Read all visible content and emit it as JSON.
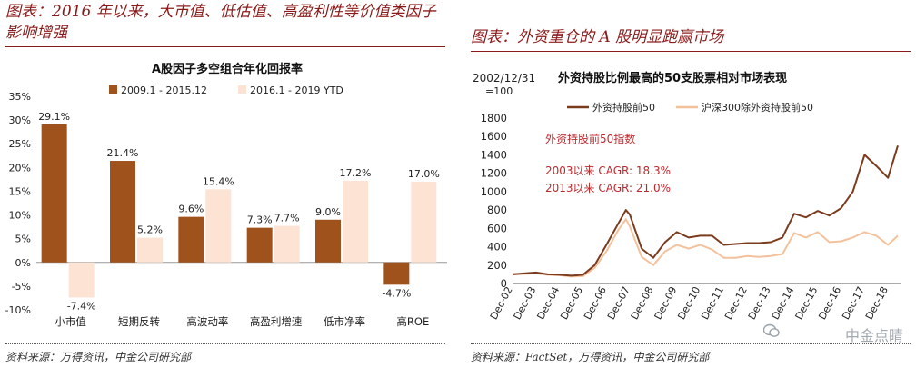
{
  "left_panel": {
    "title": "图表：2016 年以来，大市值、低估值、高盈利性等价值类因子影响增强",
    "source": "资料来源：万得资讯，中金公司研究部"
  },
  "right_panel": {
    "title": "图表：外资重仓的 A 股明显跑赢市场",
    "source": "资料来源：FactSet，万得资讯，中金公司研究部"
  },
  "watermark": {
    "text": "中金点睛",
    "icon": "wechat-icon"
  },
  "colors": {
    "brand": "#8b1a1a",
    "brown": "#a0521d",
    "peach": "#fde3d3",
    "line_light": "#f3c29c"
  },
  "chart_data": [
    {
      "type": "bar",
      "title": "A股因子多空组合年化回报率",
      "categories": [
        "小市值",
        "短期反转",
        "高波动率",
        "高盈利增速",
        "低市净率",
        "高ROE"
      ],
      "series": [
        {
          "name": "2009.1 - 2015.12",
          "values": [
            29.1,
            21.4,
            9.6,
            7.3,
            9.0,
            -4.7
          ]
        },
        {
          "name": "2016.1 - 2019 YTD",
          "values": [
            -7.4,
            5.2,
            15.4,
            7.7,
            17.2,
            17.0
          ]
        }
      ],
      "data_labels": [
        [
          "29.1%",
          "21.4%",
          "9.6%",
          "7.3%",
          "9.0%",
          "-4.7%"
        ],
        [
          "-7.4%",
          "5.2%",
          "15.4%",
          "7.7%",
          "17.2%",
          "17.0%"
        ]
      ],
      "ylim": [
        -10,
        35
      ],
      "yticks": [
        "-10%",
        "-5%",
        "0%",
        "5%",
        "10%",
        "15%",
        "20%",
        "25%",
        "30%",
        "35%"
      ],
      "legend": "top"
    },
    {
      "type": "line",
      "title": "外资持股比例最高的50支股票相对市场表现",
      "base_note": "2002/12/31\n=100",
      "x_ticks": [
        "Dec-02",
        "Dec-03",
        "Dec-04",
        "Dec-05",
        "Dec-06",
        "Dec-07",
        "Dec-08",
        "Dec-09",
        "Dec-10",
        "Dec-11",
        "Dec-12",
        "Dec-13",
        "Dec-14",
        "Dec-15",
        "Dec-16",
        "Dec-17",
        "Dec-18"
      ],
      "yticks": [
        "0",
        "200",
        "400",
        "600",
        "800",
        "1000",
        "1200",
        "1400",
        "1600",
        "1800"
      ],
      "ylim": [
        0,
        1800
      ],
      "annotations": [
        "外资持股前50指数",
        "2003以来 CAGR: 18.3%",
        "2013以来 CAGR: 21.0%"
      ],
      "x": [
        "Dec-02",
        "Jun-03",
        "Dec-03",
        "Jun-04",
        "Dec-04",
        "Jun-05",
        "Dec-05",
        "Jun-06",
        "Dec-06",
        "Jun-07",
        "Oct-07",
        "Dec-07",
        "Jun-08",
        "Dec-08",
        "Jun-09",
        "Dec-09",
        "Jun-10",
        "Dec-10",
        "Jun-11",
        "Dec-11",
        "Jun-12",
        "Dec-12",
        "Jun-13",
        "Dec-13",
        "Jun-14",
        "Dec-14",
        "Jun-15",
        "Dec-15",
        "Jun-16",
        "Dec-16",
        "Jun-17",
        "Dec-17",
        "Jun-18",
        "Dec-18",
        "May-19"
      ],
      "series": [
        {
          "name": "外资持股前50",
          "color": "#7a3b1e",
          "values": [
            100,
            110,
            120,
            100,
            95,
            85,
            95,
            200,
            420,
            650,
            800,
            750,
            380,
            280,
            450,
            560,
            500,
            520,
            520,
            420,
            430,
            440,
            440,
            450,
            500,
            760,
            720,
            790,
            740,
            820,
            1000,
            1400,
            1280,
            1150,
            1500
          ]
        },
        {
          "name": "沪深300除外资持股前50",
          "color": "#f3c29c",
          "values": [
            100,
            105,
            110,
            95,
            90,
            75,
            80,
            170,
            350,
            580,
            700,
            620,
            290,
            200,
            350,
            420,
            380,
            420,
            370,
            280,
            280,
            300,
            290,
            300,
            320,
            550,
            500,
            560,
            450,
            460,
            500,
            560,
            520,
            420,
            520
          ]
        }
      ],
      "legend": "top"
    }
  ]
}
